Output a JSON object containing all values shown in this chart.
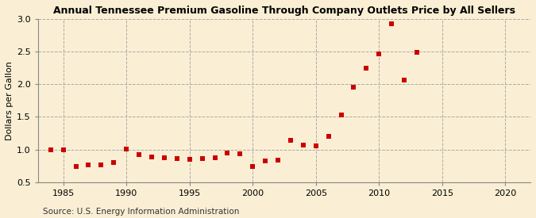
{
  "title": "Annual Tennessee Premium Gasoline Through Company Outlets Price by All Sellers",
  "ylabel": "Dollars per Gallon",
  "source": "Source: U.S. Energy Information Administration",
  "background_color": "#faefd4",
  "marker_color": "#cc0000",
  "xlim": [
    1983,
    2022
  ],
  "ylim": [
    0.5,
    3.0
  ],
  "xticks": [
    1985,
    1990,
    1995,
    2000,
    2005,
    2010,
    2015,
    2020
  ],
  "yticks": [
    0.5,
    1.0,
    1.5,
    2.0,
    2.5,
    3.0
  ],
  "data": [
    [
      1984,
      1.0
    ],
    [
      1985,
      1.0
    ],
    [
      1986,
      0.74
    ],
    [
      1987,
      0.76
    ],
    [
      1988,
      0.77
    ],
    [
      1989,
      0.8
    ],
    [
      1990,
      1.01
    ],
    [
      1991,
      0.92
    ],
    [
      1992,
      0.89
    ],
    [
      1993,
      0.87
    ],
    [
      1994,
      0.86
    ],
    [
      1995,
      0.85
    ],
    [
      1996,
      0.86
    ],
    [
      1997,
      0.87
    ],
    [
      1998,
      0.95
    ],
    [
      1999,
      0.93
    ],
    [
      2000,
      0.74
    ],
    [
      2001,
      0.83
    ],
    [
      2002,
      0.84
    ],
    [
      2003,
      1.14
    ],
    [
      2004,
      1.07
    ],
    [
      2005,
      1.05
    ],
    [
      2006,
      1.2
    ],
    [
      2007,
      1.53
    ],
    [
      2008,
      1.96
    ],
    [
      2009,
      2.24
    ],
    [
      2010,
      2.46
    ],
    [
      2011,
      2.93
    ],
    [
      2012,
      2.06
    ],
    [
      2013,
      2.49
    ]
  ]
}
